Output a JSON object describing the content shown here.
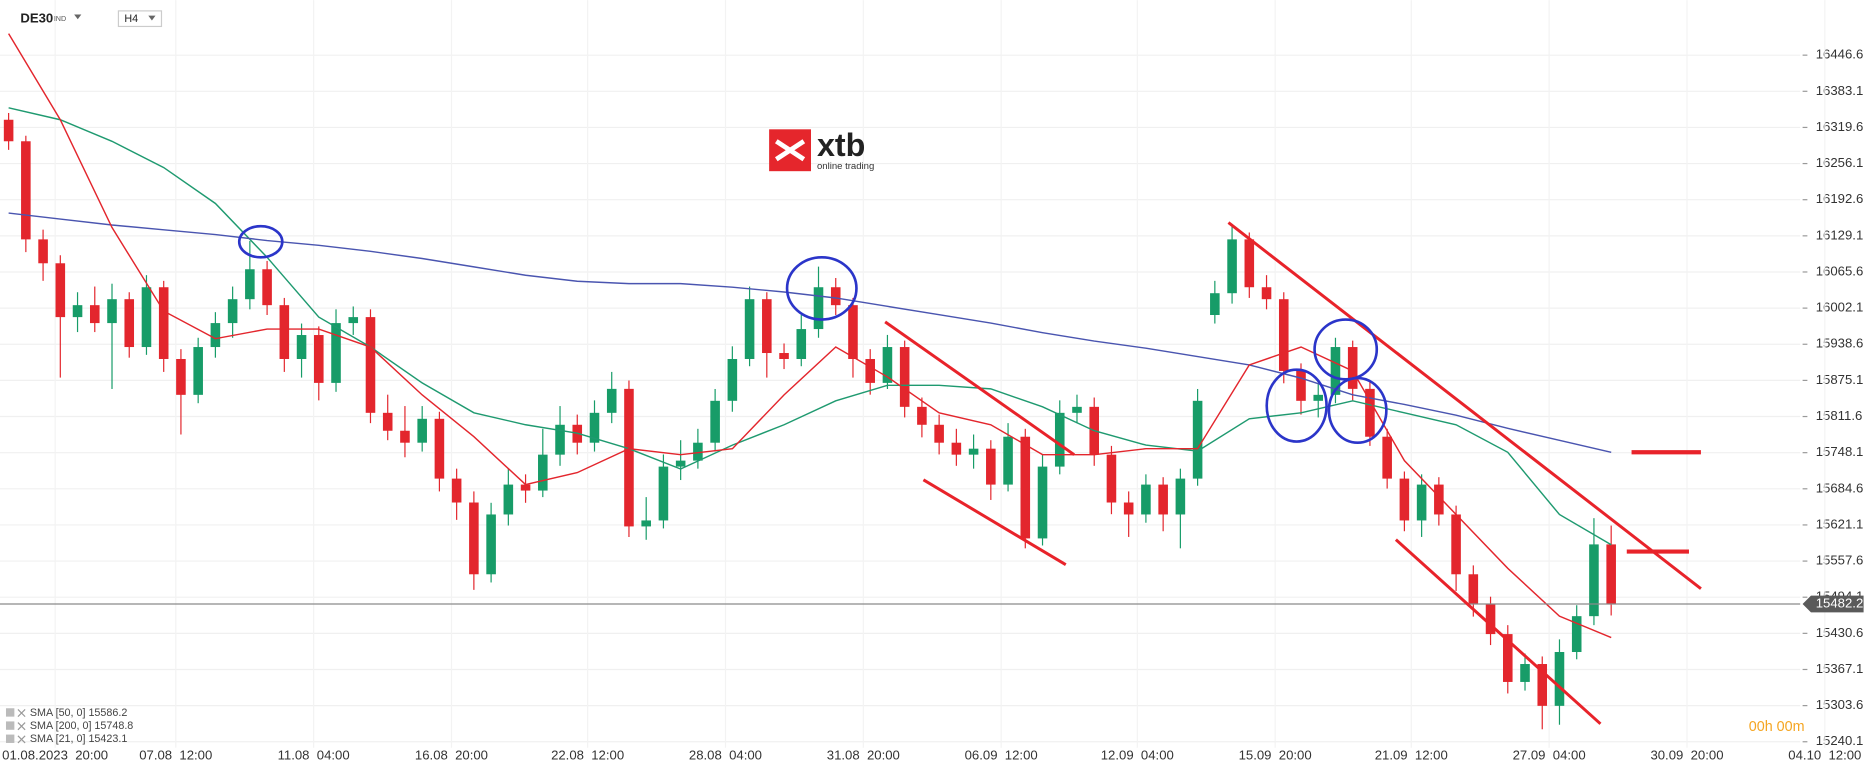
{
  "header": {
    "symbol": "DE30",
    "symbol_type": "IND",
    "interval": "H4"
  },
  "logo": {
    "name": "xtb",
    "tagline": "online trading"
  },
  "countdown": "00h 00m",
  "chart_data": {
    "type": "candlestick",
    "xlim": [
      -0.5,
      106.4
    ],
    "xticks": [
      {
        "value": 2.7,
        "label": "01.08.2023  20:00"
      },
      {
        "value": 9.7,
        "label": "07.08  12:00"
      },
      {
        "value": 17.7,
        "label": "11.08  04:00"
      },
      {
        "value": 25.7,
        "label": "16.08  20:00"
      },
      {
        "value": 33.6,
        "label": "22.08  12:00"
      },
      {
        "value": 41.6,
        "label": "28.08  04:00"
      },
      {
        "value": 49.6,
        "label": "31.08  20:00"
      },
      {
        "value": 57.6,
        "label": "06.09  12:00"
      },
      {
        "value": 65.5,
        "label": "12.09  04:00"
      },
      {
        "value": 73.5,
        "label": "15.09  20:00"
      },
      {
        "value": 81.4,
        "label": "21.09  12:00"
      },
      {
        "value": 89.4,
        "label": "27.09  04:00"
      },
      {
        "value": 97.4,
        "label": "30.09  20:00"
      },
      {
        "value": 105.4,
        "label": "04.10  12:00"
      }
    ],
    "ylim": [
      15229.6,
      16543.3
    ],
    "yticks": [
      16446.6,
      16383.1,
      16319.6,
      16256.1,
      16192.6,
      16129.1,
      16065.6,
      16002.1,
      15938.6,
      15875.1,
      15811.6,
      15748.1,
      15684.6,
      15621.1,
      15557.6,
      15494.1,
      15430.6,
      15367.1,
      15303.6,
      15240.1
    ],
    "grid": true,
    "up_color": "#179c68",
    "down_color": "#e3262d",
    "last_price": 15482.2,
    "candles": [
      [
        16333.1,
        16345.0,
        16280.2,
        16295.3
      ],
      [
        16295.3,
        16305.0,
        16100.5,
        16122.9
      ],
      [
        16122.9,
        16140.0,
        16050.0,
        16080.9
      ],
      [
        16080.9,
        16095.0,
        15880.0,
        15986.3
      ],
      [
        15986.3,
        16030.0,
        15960.0,
        16007.3
      ],
      [
        16007.3,
        16040.0,
        15960.0,
        15975.8
      ],
      [
        15975.8,
        16045.0,
        15860.0,
        16017.8
      ],
      [
        16017.8,
        16030.0,
        15915.0,
        15933.7
      ],
      [
        15933.7,
        16060.0,
        15920.0,
        16038.8
      ],
      [
        16038.8,
        16050.0,
        15890.0,
        15912.7
      ],
      [
        15912.7,
        15930.0,
        15780.0,
        15849.7
      ],
      [
        15849.7,
        15950.0,
        15835.0,
        15933.7
      ],
      [
        15933.7,
        15995.0,
        15915.0,
        15975.8
      ],
      [
        15975.8,
        16040.0,
        15950.0,
        16017.8
      ],
      [
        16017.8,
        16120.0,
        16000.0,
        16070.4
      ],
      [
        16070.4,
        16085.0,
        15990.0,
        16007.3
      ],
      [
        16007.3,
        16020.0,
        15890.0,
        15912.7
      ],
      [
        15912.7,
        15975.0,
        15880.0,
        15954.8
      ],
      [
        15954.8,
        15970.0,
        15840.0,
        15870.7
      ],
      [
        15870.7,
        16000.0,
        15855.0,
        15975.8
      ],
      [
        15975.8,
        16005.0,
        15955.0,
        15986.3
      ],
      [
        15986.3,
        16000.0,
        15800.0,
        15818.1
      ],
      [
        15818.1,
        15850.0,
        15770.0,
        15786.6
      ],
      [
        15786.6,
        15830.0,
        15740.0,
        15765.6
      ],
      [
        15765.6,
        15830.0,
        15750.0,
        15807.6
      ],
      [
        15807.6,
        15820.0,
        15680.0,
        15702.5
      ],
      [
        15702.5,
        15720.0,
        15630.0,
        15660.5
      ],
      [
        15660.5,
        15680.0,
        15507.0,
        15534.4
      ],
      [
        15534.4,
        15660.0,
        15520.0,
        15639.5
      ],
      [
        15639.5,
        15720.0,
        15620.0,
        15692.0
      ],
      [
        15692.0,
        15710.0,
        15660.0,
        15681.5
      ],
      [
        15681.5,
        15790.0,
        15670.0,
        15744.6
      ],
      [
        15744.6,
        15830.0,
        15725.0,
        15797.1
      ],
      [
        15797.1,
        15815.0,
        15745.0,
        15765.6
      ],
      [
        15765.6,
        15840.0,
        15750.0,
        15818.1
      ],
      [
        15818.1,
        15890.0,
        15800.0,
        15860.2
      ],
      [
        15860.2,
        15875.0,
        15600.0,
        15618.5
      ],
      [
        15618.5,
        15670.0,
        15595.0,
        15629.0
      ],
      [
        15629.0,
        15745.0,
        15615.0,
        15723.6
      ],
      [
        15723.6,
        15770.0,
        15700.0,
        15734.1
      ],
      [
        15734.1,
        15790.0,
        15720.0,
        15765.6
      ],
      [
        15765.6,
        15860.0,
        15750.0,
        15839.2
      ],
      [
        15839.2,
        15935.0,
        15820.0,
        15912.7
      ],
      [
        15912.7,
        16040.0,
        15900.0,
        16017.8
      ],
      [
        16017.8,
        16030.0,
        15880.0,
        15923.2
      ],
      [
        15923.2,
        15940.0,
        15895.0,
        15912.7
      ],
      [
        15912.7,
        15990.0,
        15900.0,
        15965.3
      ],
      [
        15965.3,
        16075.0,
        15950.0,
        16038.8
      ],
      [
        16038.8,
        16055.0,
        15990.0,
        16007.3
      ],
      [
        16007.3,
        16020.0,
        15880.0,
        15912.7
      ],
      [
        15912.7,
        15930.0,
        15850.0,
        15870.7
      ],
      [
        15870.7,
        15955.0,
        15860.0,
        15933.7
      ],
      [
        15933.7,
        15945.0,
        15810.0,
        15828.6
      ],
      [
        15828.6,
        15845.0,
        15775.0,
        15797.1
      ],
      [
        15797.1,
        15815.0,
        15745.0,
        15765.6
      ],
      [
        15765.6,
        15790.0,
        15725.0,
        15744.6
      ],
      [
        15744.6,
        15780.0,
        15720.0,
        15755.1
      ],
      [
        15755.1,
        15770.0,
        15665.0,
        15692.0
      ],
      [
        15692.0,
        15800.0,
        15680.0,
        15776.1
      ],
      [
        15776.1,
        15790.0,
        15580.0,
        15597.4
      ],
      [
        15597.4,
        15745.0,
        15585.0,
        15723.6
      ],
      [
        15723.6,
        15840.0,
        15710.0,
        15818.1
      ],
      [
        15818.1,
        15850.0,
        15800.0,
        15828.6
      ],
      [
        15828.6,
        15845.0,
        15725.0,
        15744.6
      ],
      [
        15744.6,
        15760.0,
        15640.0,
        15660.5
      ],
      [
        15660.5,
        15680.0,
        15600.0,
        15639.5
      ],
      [
        15639.5,
        15710.0,
        15625.0,
        15692.0
      ],
      [
        15692.0,
        15705.0,
        15610.0,
        15639.5
      ],
      [
        15639.5,
        15720.0,
        15580.0,
        15702.5
      ],
      [
        15702.5,
        15860.0,
        15690.0,
        15839.2
      ],
      [
        15990.0,
        16050.0,
        15975.0,
        16028.3
      ],
      [
        16028.3,
        16150.0,
        16010.0,
        16122.9
      ],
      [
        16122.9,
        16135.0,
        16020.0,
        16038.8
      ],
      [
        16038.8,
        16060.0,
        16000.0,
        16017.8
      ],
      [
        16017.8,
        16030.0,
        15870.0,
        15891.7
      ],
      [
        15891.7,
        15905.0,
        15815.0,
        15839.2
      ],
      [
        15839.2,
        15870.0,
        15810.0,
        15849.7
      ],
      [
        15849.7,
        15950.0,
        15835.0,
        15933.7
      ],
      [
        15933.7,
        15945.0,
        15840.0,
        15860.2
      ],
      [
        15860.2,
        15875.0,
        15760.0,
        15776.1
      ],
      [
        15776.1,
        15790.0,
        15685.0,
        15702.5
      ],
      [
        15702.5,
        15715.0,
        15610.0,
        15629.0
      ],
      [
        15629.0,
        15710.0,
        15600.0,
        15692.0
      ],
      [
        15692.0,
        15705.0,
        15620.0,
        15639.5
      ],
      [
        15639.5,
        15655.0,
        15505.0,
        15534.4
      ],
      [
        15534.4,
        15550.0,
        15460.0,
        15481.8
      ],
      [
        15481.8,
        15495.0,
        15410.0,
        15429.3
      ],
      [
        15429.3,
        15445.0,
        15325.0,
        15345.2
      ],
      [
        15345.2,
        15395.0,
        15330.0,
        15376.7
      ],
      [
        15376.7,
        15390.0,
        15262.0,
        15303.2
      ],
      [
        15303.2,
        15420.0,
        15270.0,
        15397.8
      ],
      [
        15397.8,
        15480.0,
        15385.0,
        15460.8
      ],
      [
        15460.8,
        15633.0,
        15445.0,
        15586.9
      ],
      [
        15586.9,
        15620.0,
        15462.0,
        15482.2
      ]
    ],
    "series": [
      {
        "name": "SMA [50, 0] 15586.2",
        "color": "#1f9a70",
        "x": [
          0,
          3,
          6,
          9,
          12,
          15,
          18,
          21,
          24,
          27,
          30,
          33,
          36,
          39,
          42,
          45,
          48,
          51,
          54,
          57,
          60,
          63,
          66,
          69,
          72,
          75,
          78,
          81,
          84,
          87,
          90,
          93
        ],
        "values": [
          16354.1,
          16333.1,
          16295.3,
          16249.0,
          16186.0,
          16091.4,
          15986.3,
          15933.7,
          15870.7,
          15818.1,
          15797.1,
          15782.4,
          15755.1,
          15719.3,
          15761.4,
          15797.1,
          15839.2,
          15866.5,
          15866.5,
          15860.2,
          15828.6,
          15786.6,
          15761.4,
          15750.9,
          15807.6,
          15818.1,
          15839.2,
          15818.1,
          15797.1,
          15748.8,
          15639.5,
          15586.2
        ]
      },
      {
        "name": "SMA [200, 0] 15748.8",
        "color": "#4a55b0",
        "x": [
          0,
          3,
          6,
          9,
          12,
          15,
          18,
          21,
          24,
          27,
          30,
          33,
          36,
          39,
          42,
          45,
          48,
          51,
          54,
          57,
          60,
          63,
          66,
          69,
          72,
          75,
          78,
          81,
          84,
          87,
          90,
          93
        ],
        "values": [
          16169.1,
          16158.6,
          16148.1,
          16139.7,
          16131.3,
          16120.8,
          16112.4,
          16101.9,
          16089.3,
          16074.6,
          16059.9,
          16049.3,
          16045.1,
          16045.1,
          16038.8,
          16030.4,
          16019.9,
          16005.2,
          15990.5,
          15975.8,
          15959.0,
          15944.2,
          15931.6,
          15916.9,
          15902.2,
          15879.1,
          15849.7,
          15832.8,
          15813.9,
          15790.8,
          15769.8,
          15748.8
        ]
      },
      {
        "name": "SMA [21, 0] 15423.1",
        "color": "#e3262d",
        "x": [
          0,
          3,
          6,
          9,
          12,
          15,
          18,
          21,
          24,
          27,
          30,
          33,
          36,
          39,
          42,
          45,
          48,
          51,
          54,
          57,
          60,
          63,
          66,
          69,
          72,
          75,
          78,
          81,
          84,
          87,
          90,
          93
        ],
        "values": [
          16484.4,
          16333.1,
          16143.9,
          15996.8,
          15948.4,
          15965.3,
          15965.3,
          15933.7,
          15849.7,
          15776.1,
          15692.0,
          15713.0,
          15755.1,
          15744.6,
          15755.1,
          15849.7,
          15933.7,
          15881.2,
          15818.1,
          15797.1,
          15744.6,
          15744.6,
          15755.1,
          15755.1,
          15902.2,
          15933.7,
          15891.7,
          15734.1,
          15639.5,
          15544.9,
          15460.8,
          15423.1
        ]
      }
    ]
  }
}
